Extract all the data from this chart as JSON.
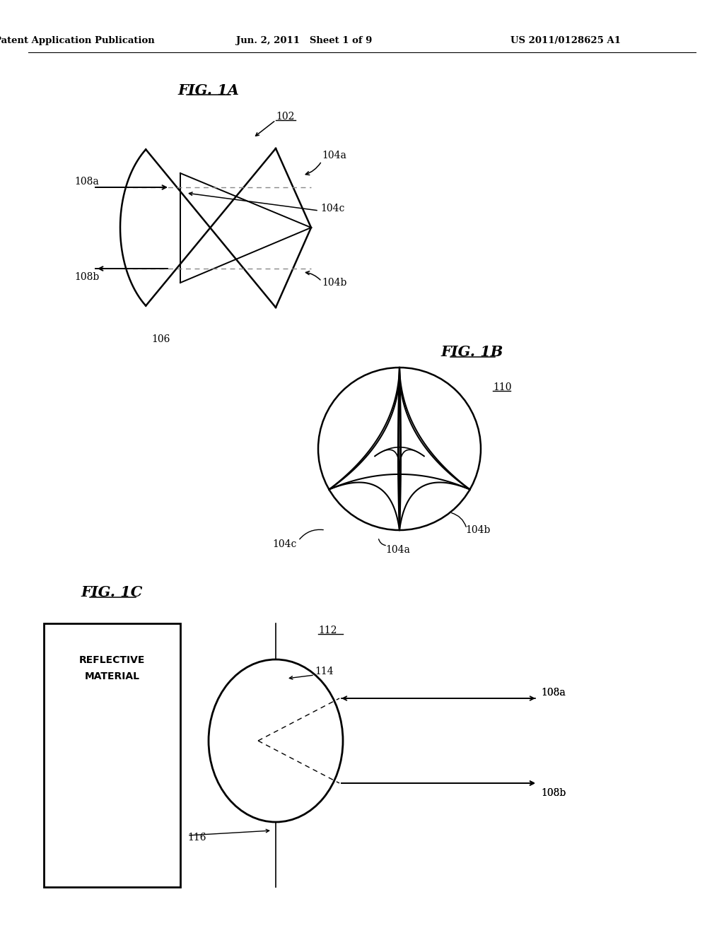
{
  "bg_color": "#ffffff",
  "header_left": "Patent Application Publication",
  "header_center": "Jun. 2, 2011   Sheet 1 of 9",
  "header_right": "US 2011/0128625 A1"
}
